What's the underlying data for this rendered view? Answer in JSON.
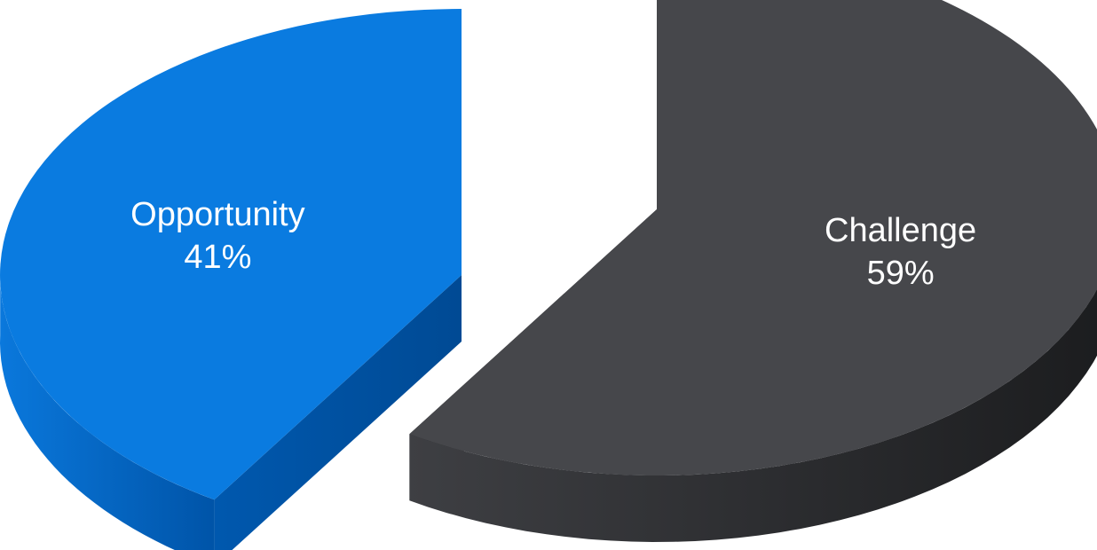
{
  "chart_data": {
    "type": "pie",
    "style": "3d-exploded",
    "title": "",
    "slices": [
      {
        "name": "Opportunity",
        "value": 41,
        "label": "41%",
        "color": "#0A7BE0",
        "side_color": "#0064C4"
      },
      {
        "name": "Challenge",
        "value": 59,
        "label": "59%",
        "color": "#46474B",
        "side_color": "#2A2B2E"
      }
    ],
    "legend": "none"
  }
}
